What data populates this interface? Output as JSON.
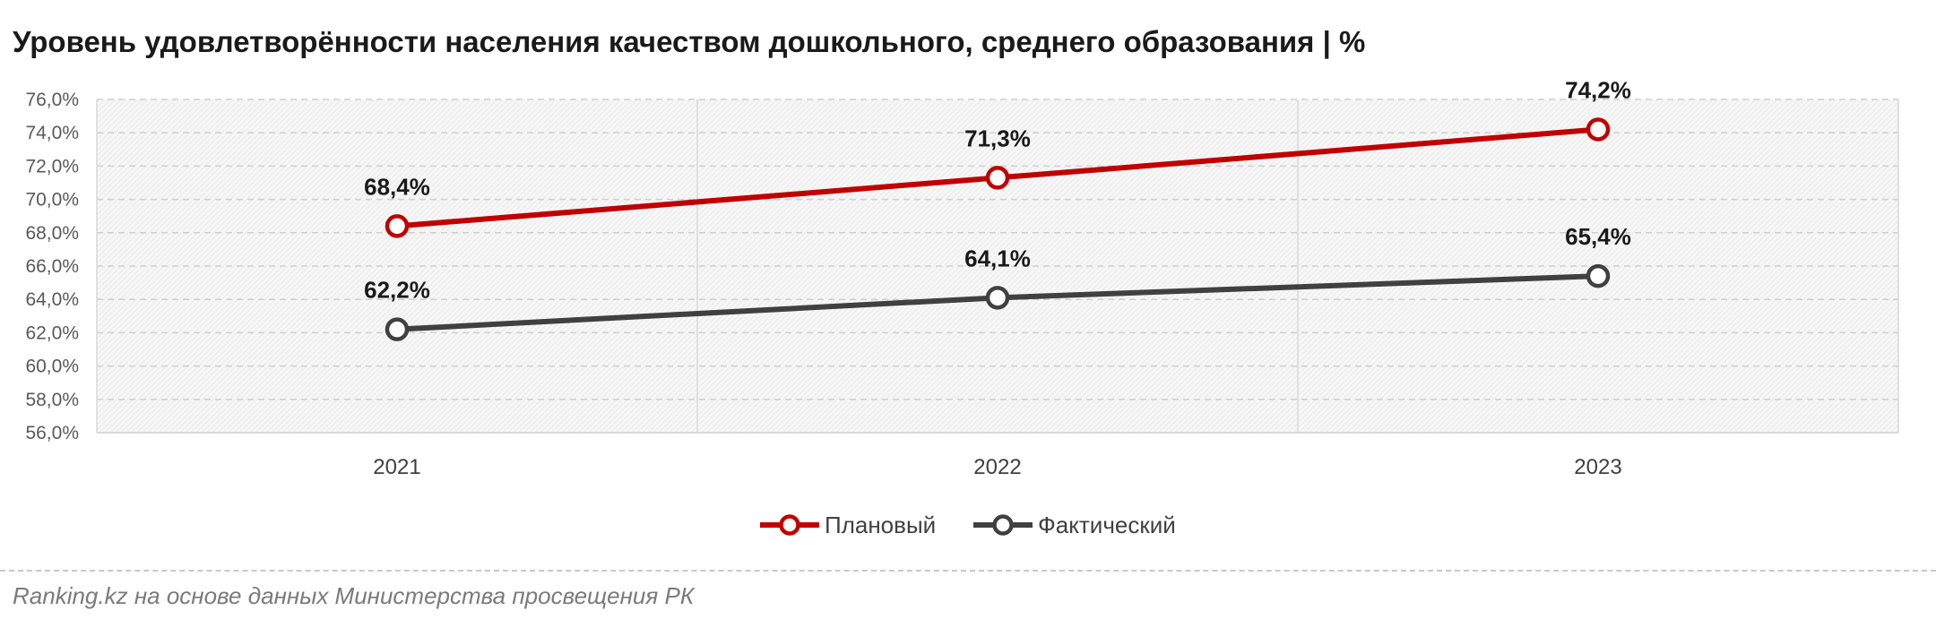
{
  "chart_data": {
    "type": "line",
    "title": "Уровень удовлетворённости населения качеством дошкольного, среднего образования | %",
    "categories": [
      "2021",
      "2022",
      "2023"
    ],
    "series": [
      {
        "name": "Плановый",
        "color": "#c00000",
        "values": [
          68.4,
          71.3,
          74.2
        ],
        "labels": [
          "68,4%",
          "71,3%",
          "74,2%"
        ]
      },
      {
        "name": "Фактический",
        "color": "#404040",
        "values": [
          62.2,
          64.1,
          65.4
        ],
        "labels": [
          "62,2%",
          "64,1%",
          "65,4%"
        ]
      }
    ],
    "ylim": [
      56,
      76
    ],
    "y_ticks": [
      56,
      58,
      60,
      62,
      64,
      66,
      68,
      70,
      72,
      74,
      76
    ],
    "y_tick_labels": [
      "56,0%",
      "58,0%",
      "60,0%",
      "62,0%",
      "64,0%",
      "66,0%",
      "68,0%",
      "70,0%",
      "72,0%",
      "74,0%",
      "76,0%"
    ],
    "grid": true,
    "legend_position": "bottom-center"
  },
  "source": "Ranking.kz на основе данных Министерства просвещения РК"
}
